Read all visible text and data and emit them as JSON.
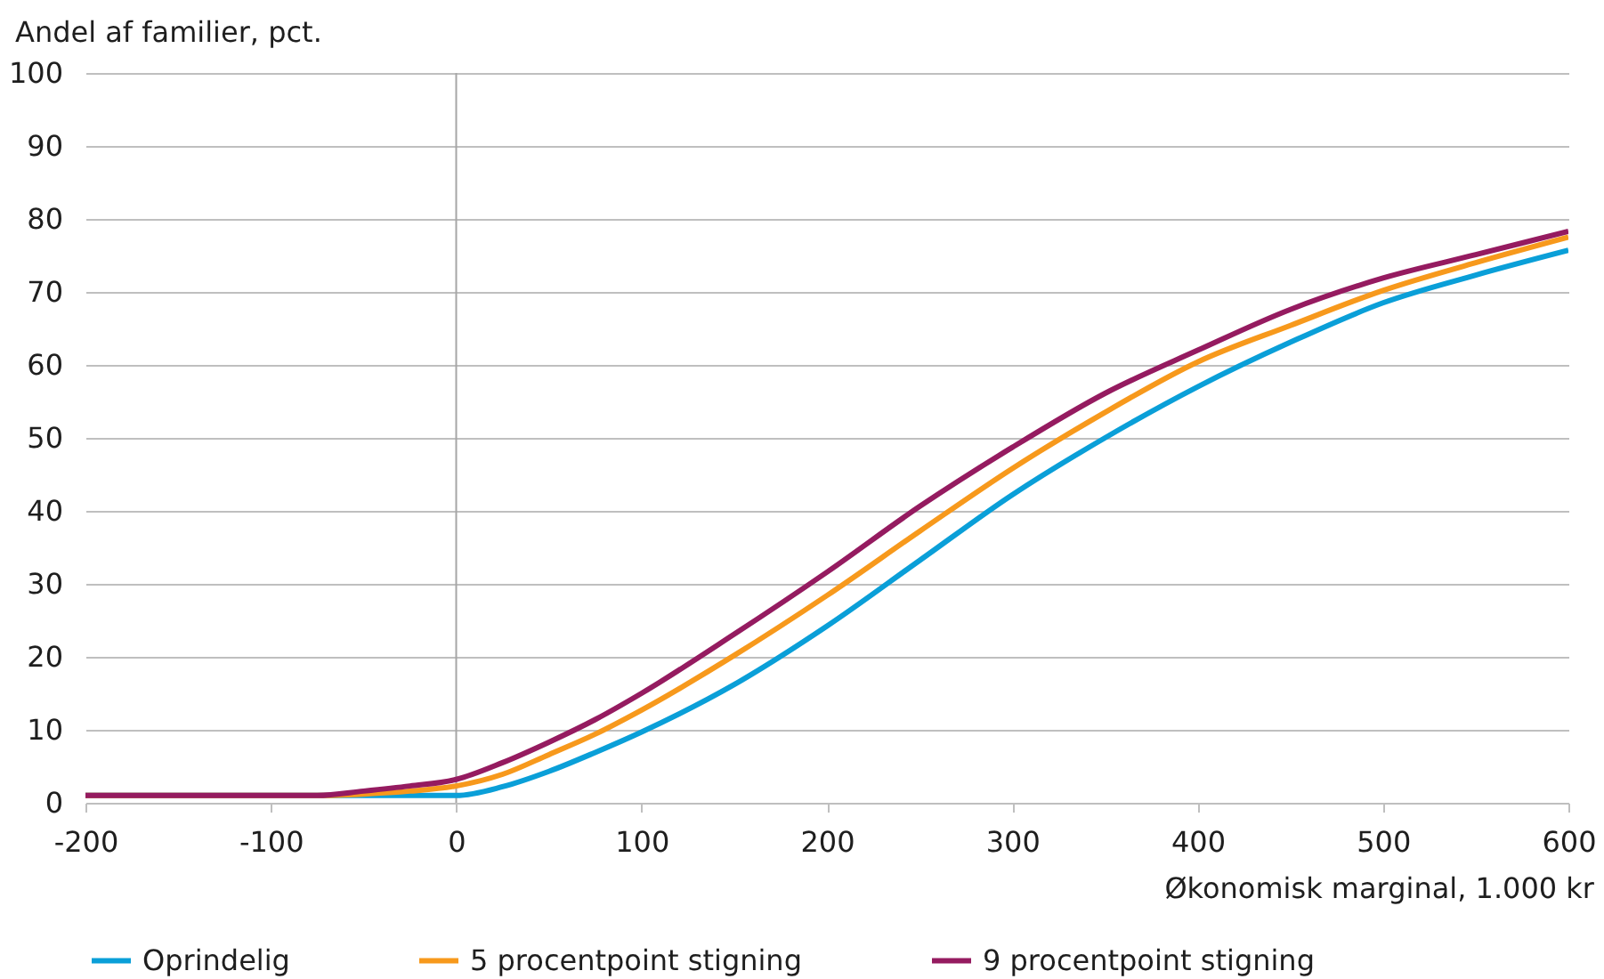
{
  "chart_data": {
    "type": "line",
    "x": [
      -200,
      -75,
      -50,
      -25,
      0,
      25,
      50,
      75,
      100,
      150,
      200,
      250,
      300,
      350,
      400,
      450,
      500,
      550,
      600
    ],
    "series": [
      {
        "name": "Oprindelig",
        "color": "#0a9fd8",
        "values": [
          1,
          1,
          1,
          1,
          1,
          2.2,
          4.3,
          6.9,
          9.7,
          16.2,
          24.2,
          33.2,
          42.2,
          50,
          57,
          63.1,
          68.5,
          72.3,
          75.7
        ]
      },
      {
        "name": "5 procentpoint stigning",
        "color": "#f7991c",
        "values": [
          1,
          1,
          1.2,
          1.6,
          2.3,
          3.9,
          6.6,
          9.4,
          12.7,
          20.2,
          28.4,
          37.2,
          45.8,
          53.5,
          60.4,
          65.4,
          70.2,
          74,
          77.5
        ]
      },
      {
        "name": "9 procentpoint stigning",
        "color": "#951b60",
        "values": [
          1,
          1,
          1.6,
          2.3,
          3.2,
          5.5,
          8.3,
          11.4,
          15,
          23.1,
          31.6,
          40.6,
          48.7,
          56.1,
          62,
          67.6,
          71.9,
          75.1,
          78.3
        ]
      }
    ],
    "xlabel": "Økonomisk marginal, 1.000 kr",
    "ylabel": "Andel af familier, pct.",
    "xlim": [
      -200,
      600
    ],
    "xticks": [
      -200,
      -100,
      0,
      100,
      200,
      300,
      400,
      500,
      600
    ],
    "ylim": [
      0,
      100
    ],
    "yticks": [
      0,
      10,
      20,
      30,
      40,
      50,
      60,
      70,
      80,
      90,
      100
    ],
    "grid": "y",
    "legend": "bottom",
    "ref_lines": [
      {
        "axis": "x",
        "value": 0,
        "color": "#a6a6a6"
      }
    ]
  }
}
